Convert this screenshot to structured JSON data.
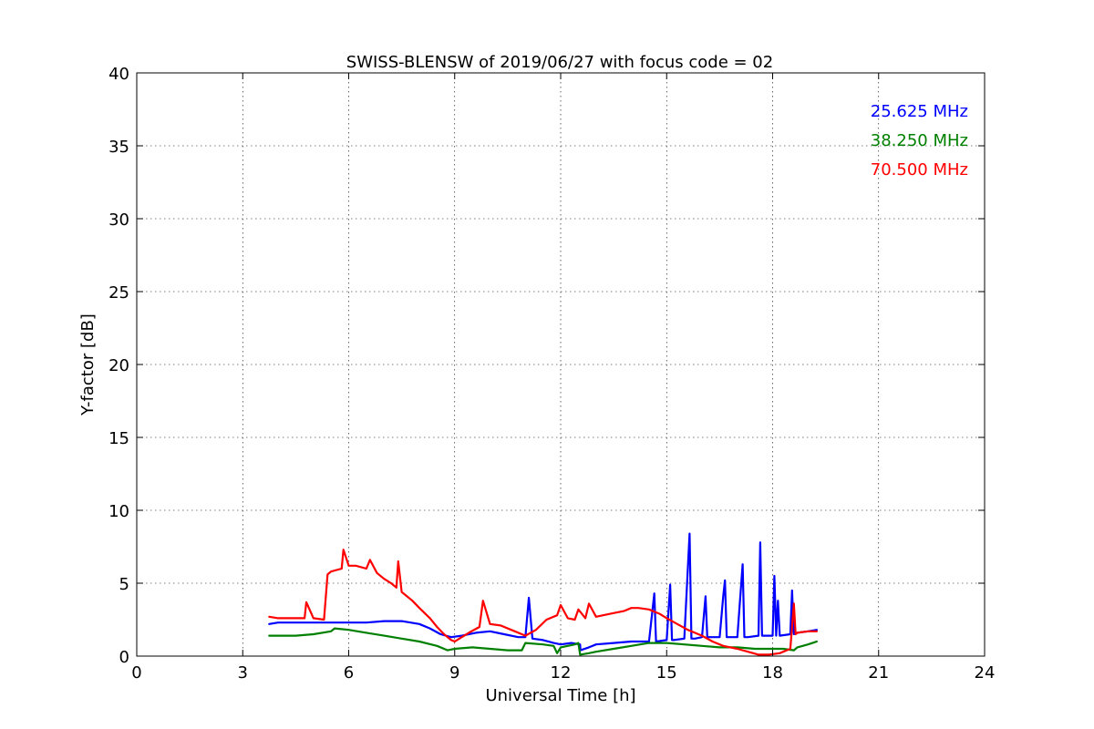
{
  "chart_data": {
    "type": "line",
    "title": "SWISS-BLENSW of 2019/06/27 with focus code = 02",
    "xlabel": "Universal Time [h]",
    "ylabel": "Y-factor [dB]",
    "xlim": [
      0,
      24
    ],
    "ylim": [
      0,
      40
    ],
    "xticks": [
      0,
      3,
      6,
      9,
      12,
      15,
      18,
      21,
      24
    ],
    "yticks": [
      0,
      5,
      10,
      15,
      20,
      25,
      30,
      35,
      40
    ],
    "grid": true,
    "legend_position": "top-right",
    "series": [
      {
        "name": "25.625 MHz",
        "color": "#0000ff",
        "x": [
          3.75,
          4.0,
          4.5,
          5.0,
          5.5,
          6.0,
          6.5,
          7.0,
          7.5,
          8.0,
          8.3,
          8.6,
          8.9,
          9.2,
          9.6,
          10.0,
          10.4,
          10.8,
          11.0,
          11.1,
          11.2,
          11.5,
          11.8,
          12.0,
          12.3,
          12.55,
          12.56,
          12.8,
          13.0,
          13.5,
          14.0,
          14.5,
          14.65,
          14.7,
          15.0,
          15.1,
          15.15,
          15.2,
          15.5,
          15.65,
          15.7,
          15.8,
          16.0,
          16.1,
          16.15,
          16.2,
          16.5,
          16.6,
          16.65,
          16.7,
          17.0,
          17.15,
          17.2,
          17.3,
          17.6,
          17.65,
          17.7,
          18.0,
          18.05,
          18.1,
          18.15,
          18.2,
          18.5,
          18.55,
          18.6,
          18.7,
          19.0,
          19.25
        ],
        "y": [
          2.2,
          2.3,
          2.3,
          2.3,
          2.3,
          2.3,
          2.3,
          2.4,
          2.4,
          2.2,
          1.9,
          1.5,
          1.3,
          1.4,
          1.6,
          1.7,
          1.5,
          1.3,
          1.3,
          4.0,
          1.2,
          1.1,
          0.9,
          0.8,
          0.9,
          0.8,
          0.4,
          0.6,
          0.8,
          0.9,
          1.0,
          1.0,
          4.3,
          1.0,
          1.1,
          4.9,
          1.1,
          1.1,
          1.2,
          8.4,
          1.2,
          1.2,
          1.3,
          4.1,
          1.3,
          1.3,
          1.3,
          4.1,
          5.2,
          1.3,
          1.3,
          6.3,
          1.3,
          1.3,
          1.4,
          7.8,
          1.4,
          1.4,
          5.5,
          1.4,
          3.8,
          1.4,
          1.5,
          4.5,
          1.5,
          1.6,
          1.7,
          1.8
        ]
      },
      {
        "name": "38.250 MHz",
        "color": "#008000",
        "x": [
          3.75,
          4.0,
          4.5,
          5.0,
          5.5,
          5.6,
          6.0,
          6.5,
          7.0,
          7.5,
          8.0,
          8.5,
          8.8,
          9.0,
          9.5,
          10.0,
          10.5,
          10.9,
          11.0,
          11.5,
          11.8,
          11.9,
          12.0,
          12.4,
          12.5,
          12.55,
          12.8,
          13.0,
          13.5,
          14.0,
          14.5,
          15.0,
          15.5,
          16.0,
          16.5,
          17.0,
          17.5,
          18.0,
          18.3,
          18.6,
          18.7,
          19.0,
          19.25
        ],
        "y": [
          1.4,
          1.4,
          1.4,
          1.5,
          1.7,
          1.9,
          1.8,
          1.6,
          1.4,
          1.2,
          1.0,
          0.7,
          0.4,
          0.5,
          0.6,
          0.5,
          0.4,
          0.4,
          0.9,
          0.8,
          0.7,
          0.2,
          0.6,
          0.8,
          0.9,
          0.1,
          0.2,
          0.3,
          0.5,
          0.7,
          0.9,
          0.9,
          0.8,
          0.7,
          0.6,
          0.6,
          0.5,
          0.5,
          0.5,
          0.4,
          0.6,
          0.8,
          1.0
        ]
      },
      {
        "name": "70.500 MHz",
        "color": "#ff0000",
        "x": [
          3.75,
          4.0,
          4.5,
          4.75,
          4.8,
          5.0,
          5.3,
          5.4,
          5.5,
          5.8,
          5.85,
          6.0,
          6.2,
          6.5,
          6.6,
          6.8,
          7.0,
          7.2,
          7.35,
          7.4,
          7.5,
          7.8,
          8.0,
          8.3,
          8.5,
          8.7,
          8.9,
          9.0,
          9.2,
          9.4,
          9.7,
          9.8,
          10.0,
          10.3,
          10.6,
          11.0,
          11.3,
          11.6,
          11.9,
          12.0,
          12.2,
          12.4,
          12.5,
          12.7,
          12.8,
          13.0,
          13.4,
          13.8,
          14.0,
          14.2,
          14.5,
          14.8,
          15.0,
          15.3,
          15.6,
          16.0,
          16.3,
          16.6,
          17.0,
          17.3,
          17.6,
          17.9,
          18.2,
          18.5,
          18.6,
          18.65,
          18.7,
          19.0,
          19.25
        ],
        "y": [
          2.7,
          2.6,
          2.6,
          2.6,
          3.7,
          2.6,
          2.5,
          5.6,
          5.8,
          6.0,
          7.3,
          6.2,
          6.2,
          6.0,
          6.6,
          5.7,
          5.3,
          5.0,
          4.7,
          6.5,
          4.4,
          3.8,
          3.3,
          2.6,
          2.0,
          1.5,
          1.1,
          1.0,
          1.3,
          1.6,
          2.0,
          3.8,
          2.2,
          2.1,
          1.8,
          1.4,
          1.8,
          2.5,
          2.8,
          3.5,
          2.6,
          2.5,
          3.2,
          2.6,
          3.6,
          2.7,
          2.9,
          3.1,
          3.3,
          3.3,
          3.2,
          2.9,
          2.6,
          2.2,
          1.8,
          1.4,
          1.0,
          0.7,
          0.5,
          0.3,
          0.1,
          0.1,
          0.2,
          0.5,
          3.6,
          1.5,
          1.6,
          1.7,
          1.7
        ]
      }
    ]
  }
}
